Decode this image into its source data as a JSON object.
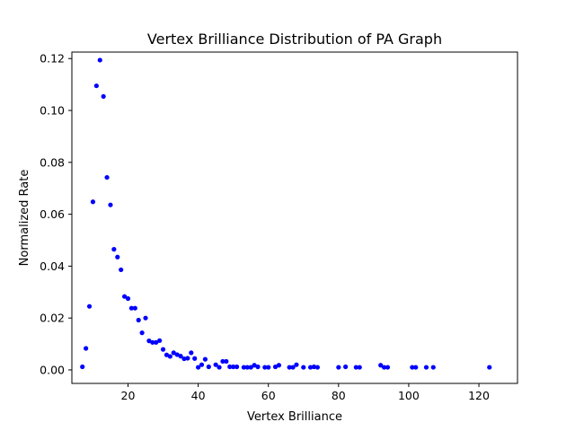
{
  "chart_data": {
    "type": "scatter",
    "title": "Vertex Brilliance Distribution of PA Graph",
    "xlabel": "Vertex Brilliance",
    "ylabel": "Normalized Rate",
    "xlim": [
      4,
      131
    ],
    "ylim": [
      -0.0052,
      0.1225
    ],
    "xticks": [
      20,
      40,
      60,
      80,
      100,
      120
    ],
    "xtick_labels": [
      "20",
      "40",
      "60",
      "80",
      "100",
      "120"
    ],
    "yticks": [
      0.0,
      0.02,
      0.04,
      0.06,
      0.08,
      0.1,
      0.12
    ],
    "ytick_labels": [
      "0.00",
      "0.02",
      "0.04",
      "0.06",
      "0.08",
      "0.10",
      "0.12"
    ],
    "grid": false,
    "marker_color": "#0000ff",
    "x": [
      7,
      8,
      9,
      10,
      11,
      12,
      13,
      14,
      15,
      16,
      17,
      18,
      19,
      20,
      21,
      22,
      23,
      24,
      25,
      26,
      27,
      28,
      29,
      30,
      31,
      32,
      33,
      34,
      35,
      36,
      37,
      38,
      39,
      40,
      41,
      42,
      43,
      45,
      46,
      47,
      48,
      49,
      50,
      51,
      53,
      54,
      55,
      56,
      57,
      59,
      60,
      62,
      63,
      66,
      67,
      68,
      70,
      72,
      73,
      74,
      80,
      82,
      85,
      86,
      92,
      93,
      94,
      101,
      102,
      105,
      107,
      123
    ],
    "y": [
      0.0012,
      0.0083,
      0.0245,
      0.0648,
      0.1095,
      0.1194,
      0.1054,
      0.0742,
      0.0636,
      0.0465,
      0.0435,
      0.0386,
      0.0283,
      0.0275,
      0.0238,
      0.0238,
      0.0192,
      0.0143,
      0.02,
      0.0112,
      0.0106,
      0.0106,
      0.0113,
      0.0079,
      0.0058,
      0.0052,
      0.0066,
      0.0059,
      0.0053,
      0.0043,
      0.0045,
      0.0066,
      0.0044,
      0.001,
      0.002,
      0.0041,
      0.0012,
      0.002,
      0.001,
      0.0033,
      0.0033,
      0.0012,
      0.0012,
      0.0012,
      0.001,
      0.001,
      0.001,
      0.0018,
      0.0012,
      0.001,
      0.001,
      0.0012,
      0.0018,
      0.001,
      0.001,
      0.002,
      0.001,
      0.001,
      0.0012,
      0.001,
      0.001,
      0.0012,
      0.001,
      0.001,
      0.0018,
      0.001,
      0.001,
      0.001,
      0.001,
      0.001,
      0.001,
      0.001
    ]
  }
}
